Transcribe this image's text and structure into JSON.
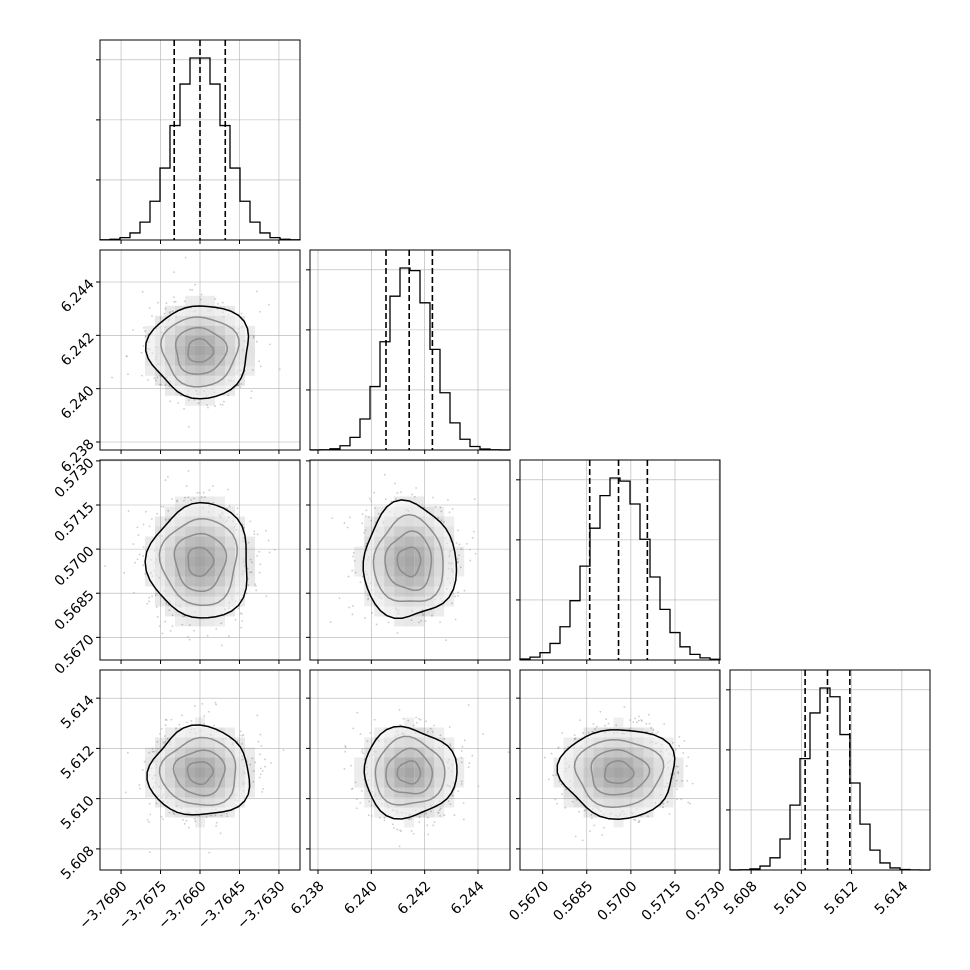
{
  "chart_data": {
    "type": "corner",
    "parameters": 4,
    "grid": true,
    "quantile_lines": [
      0.16,
      0.5,
      0.84
    ],
    "colors": {
      "line": "#000000",
      "grid": "#b0b0b0",
      "points": "#9a9a9a",
      "density": "#000000"
    },
    "ranges": [
      [
        -3.7698,
        -3.7622
      ],
      [
        6.2377,
        6.2452
      ],
      [
        0.56623,
        0.57303
      ],
      [
        5.60716,
        5.61512
      ]
    ],
    "ticks": [
      [
        -3.769,
        -3.7675,
        -3.766,
        -3.7645,
        -3.763
      ],
      [
        6.238,
        6.24,
        6.242,
        6.244
      ],
      [
        0.567,
        0.5685,
        0.57,
        0.5715,
        0.573
      ],
      [
        5.608,
        5.61,
        5.612,
        5.614
      ]
    ],
    "tick_labels": [
      [
        "−3.7690",
        "−3.7675",
        "−3.7660",
        "−3.7645",
        "−3.7630"
      ],
      [
        "6.238",
        "6.240",
        "6.242",
        "6.244"
      ],
      [
        "0.5670",
        "0.5685",
        "0.5700",
        "0.5715",
        "0.5730"
      ],
      [
        "5.608",
        "5.610",
        "5.612",
        "5.614"
      ]
    ],
    "means": [
      -3.766,
      6.24142,
      0.56958,
      5.61104
    ],
    "sigmas": [
      0.00096,
      0.00087,
      0.00098,
      0.00089
    ],
    "quantiles": [
      [
        -3.76698,
        -3.766,
        -3.76504
      ],
      [
        6.24055,
        6.24142,
        6.24229
      ],
      [
        0.5686,
        0.56958,
        0.57056
      ],
      [
        5.61015,
        5.61104,
        5.61193
      ]
    ],
    "diagonal_hist_bins": 20
  }
}
